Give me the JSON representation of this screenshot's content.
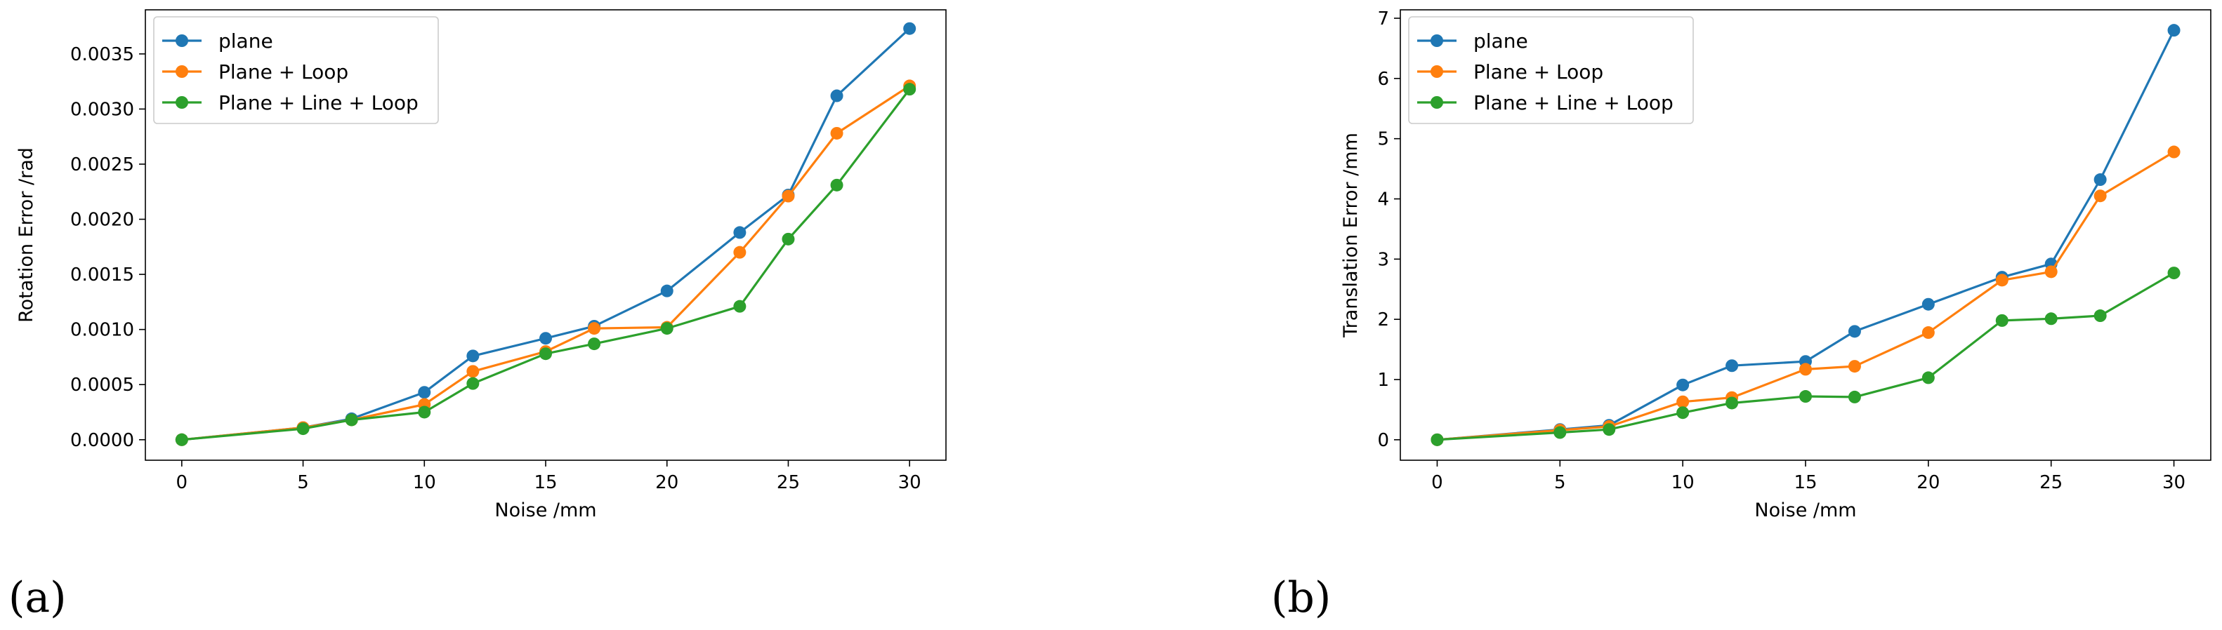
{
  "colors": {
    "plane": "#1f77b4",
    "plane_loop": "#ff7f0e",
    "plane_line_loop": "#2ca02c"
  },
  "chart_data": [
    {
      "type": "line",
      "panel_label": "(a)",
      "xlabel": "Noise /mm",
      "ylabel": "Rotation Error /rad",
      "x": [
        0,
        5,
        7,
        10,
        12,
        15,
        17,
        20,
        23,
        25,
        27,
        30
      ],
      "xticks": [
        0,
        5,
        10,
        15,
        20,
        25,
        30
      ],
      "xtick_labels": [
        "0",
        "5",
        "10",
        "15",
        "20",
        "25",
        "30"
      ],
      "xlim": [
        -1.5,
        31.5
      ],
      "yticks": [
        0,
        0.0005,
        0.001,
        0.0015,
        0.002,
        0.0025,
        0.003,
        0.0035
      ],
      "ytick_labels": [
        "0.0000",
        "0.0005",
        "0.0010",
        "0.0015",
        "0.0020",
        "0.0025",
        "0.0030",
        "0.0035"
      ],
      "ylim": [
        -0.000186,
        0.0039
      ],
      "legend_position": "upper-left",
      "series": [
        {
          "name": "plane",
          "color": "#1f77b4",
          "values": [
            0.0,
            0.00011,
            0.00019,
            0.00043,
            0.00076,
            0.00092,
            0.00103,
            0.00135,
            0.00188,
            0.00222,
            0.00312,
            0.00373
          ]
        },
        {
          "name": "Plane + Loop",
          "color": "#ff7f0e",
          "values": [
            0.0,
            0.00011,
            0.00018,
            0.00032,
            0.00062,
            0.0008,
            0.00101,
            0.00102,
            0.0017,
            0.00221,
            0.00278,
            0.00321
          ]
        },
        {
          "name": "Plane + Line + Loop",
          "color": "#2ca02c",
          "values": [
            0.0,
            0.0001,
            0.00018,
            0.00025,
            0.00051,
            0.00078,
            0.00087,
            0.00101,
            0.00121,
            0.00182,
            0.00231,
            0.00318
          ]
        }
      ]
    },
    {
      "type": "line",
      "panel_label": "(b)",
      "xlabel": "Noise /mm",
      "ylabel": "Translation Error /mm",
      "x": [
        0,
        5,
        7,
        10,
        12,
        15,
        17,
        20,
        23,
        25,
        27,
        30
      ],
      "xticks": [
        0,
        5,
        10,
        15,
        20,
        25,
        30
      ],
      "xtick_labels": [
        "0",
        "5",
        "10",
        "15",
        "20",
        "25",
        "30"
      ],
      "xlim": [
        -1.5,
        31.5
      ],
      "yticks": [
        0,
        1,
        2,
        3,
        4,
        5,
        6,
        7
      ],
      "ytick_labels": [
        "0",
        "1",
        "2",
        "3",
        "4",
        "5",
        "6",
        "7"
      ],
      "ylim": [
        -0.34,
        7.14
      ],
      "legend_position": "upper-left",
      "series": [
        {
          "name": "plane",
          "color": "#1f77b4",
          "values": [
            0.0,
            0.17,
            0.24,
            0.91,
            1.23,
            1.3,
            1.8,
            2.25,
            2.7,
            2.92,
            4.32,
            6.8
          ]
        },
        {
          "name": "Plane + Loop",
          "color": "#ff7f0e",
          "values": [
            0.0,
            0.16,
            0.22,
            0.63,
            0.7,
            1.17,
            1.22,
            1.78,
            2.65,
            2.79,
            4.05,
            4.78
          ]
        },
        {
          "name": "Plane + Line + Loop",
          "color": "#2ca02c",
          "values": [
            0.0,
            0.12,
            0.17,
            0.45,
            0.61,
            0.72,
            0.71,
            1.03,
            1.98,
            2.01,
            2.06,
            2.77
          ]
        }
      ]
    }
  ]
}
